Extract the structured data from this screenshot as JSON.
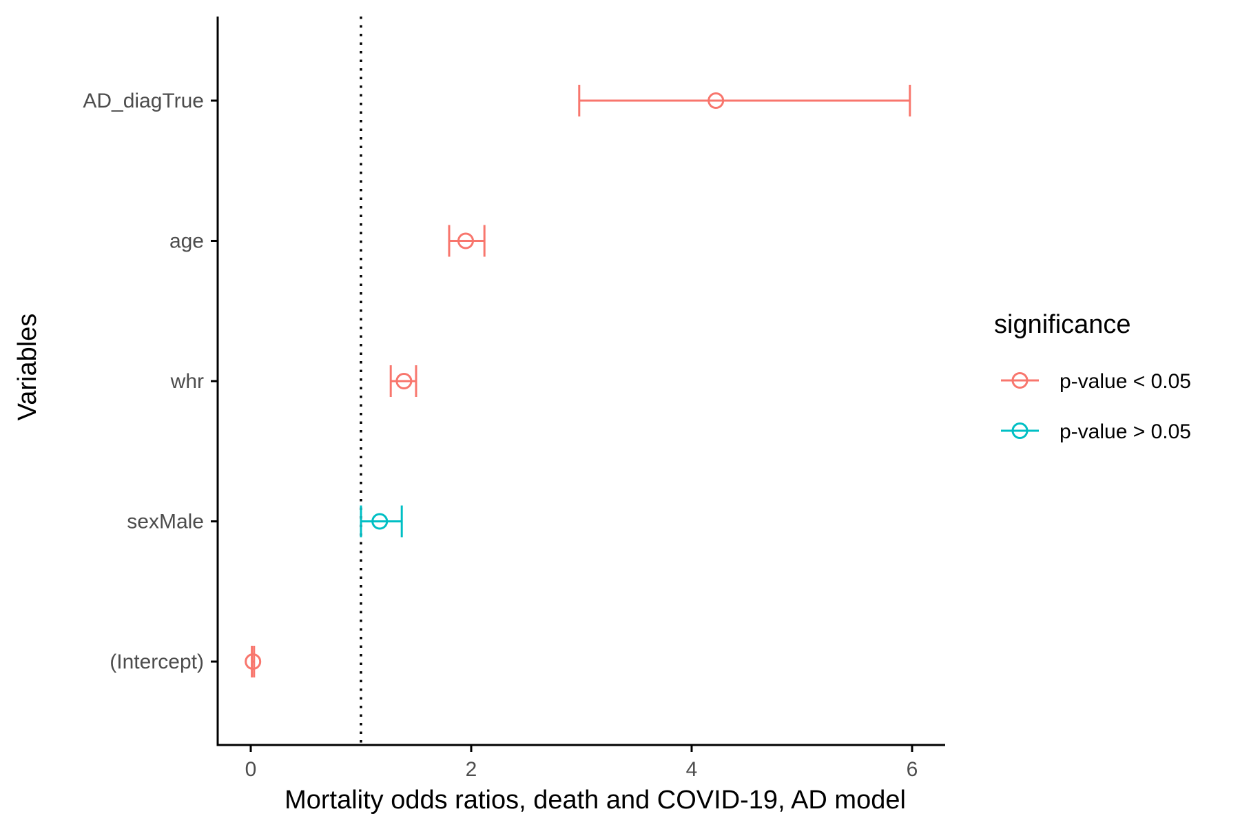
{
  "chart_data": {
    "type": "forest",
    "xlabel": "Mortality odds ratios, death and COVID-19, AD model",
    "ylabel": "Variables",
    "xlim": [
      -0.3,
      6.3
    ],
    "xticks": [
      0,
      2,
      4,
      6
    ],
    "reference_line": 1,
    "categories": [
      "AD_diagTrue",
      "age",
      "whr",
      "sexMale",
      "(Intercept)"
    ],
    "estimates": [
      {
        "variable": "AD_diagTrue",
        "estimate": 4.22,
        "lower": 2.98,
        "upper": 5.98,
        "group": "p-value < 0.05"
      },
      {
        "variable": "age",
        "estimate": 1.95,
        "lower": 1.8,
        "upper": 2.12,
        "group": "p-value < 0.05"
      },
      {
        "variable": "whr",
        "estimate": 1.39,
        "lower": 1.27,
        "upper": 1.5,
        "group": "p-value < 0.05"
      },
      {
        "variable": "sexMale",
        "estimate": 1.17,
        "lower": 1.0,
        "upper": 1.37,
        "group": "p-value > 0.05"
      },
      {
        "variable": "(Intercept)",
        "estimate": 0.02,
        "lower": 0.01,
        "upper": 0.03,
        "group": "p-value < 0.05"
      }
    ],
    "legend": {
      "title": "significance",
      "placement": "right",
      "entries": [
        {
          "label": "p-value < 0.05",
          "color": "#F8766D"
        },
        {
          "label": "p-value > 0.05",
          "color": "#00BFC4"
        }
      ]
    },
    "grid": false
  }
}
